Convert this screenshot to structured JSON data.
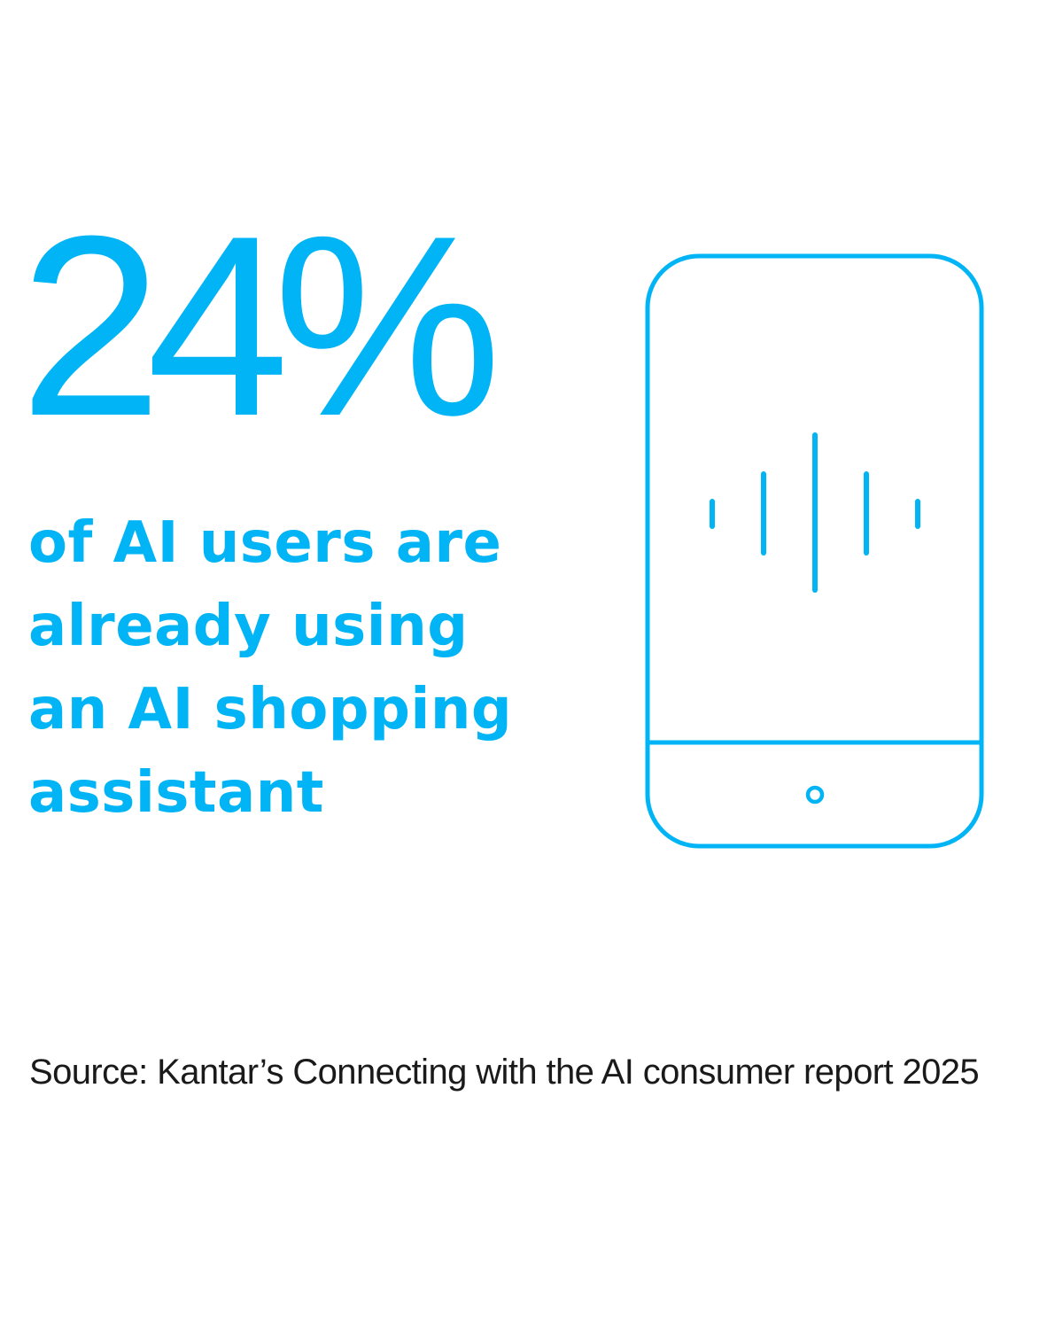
{
  "stat": {
    "value": "24%"
  },
  "description": {
    "lines": [
      "of AI users are",
      "already using",
      "an AI shopping",
      "assistant"
    ]
  },
  "source": "Source: Kantar’s Connecting with the AI consumer report 2025",
  "illustration": {
    "icon": "smartphone-voice-assistant-icon"
  },
  "colors": {
    "accent": "#00b4f5",
    "text": "#1a1a1a",
    "background": "#ffffff"
  }
}
